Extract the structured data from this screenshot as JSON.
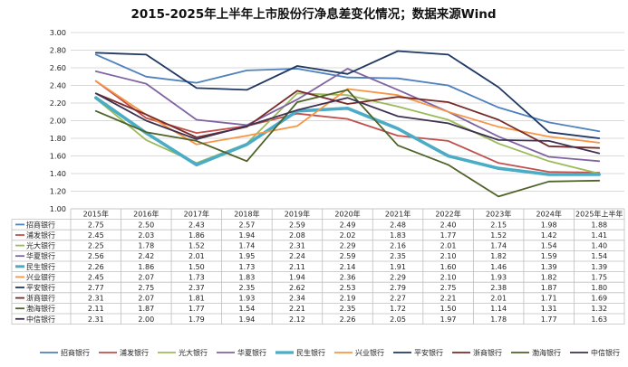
{
  "chart_data": {
    "type": "line",
    "title": "2015-2025年上半年上市股份行净息差变化情况；数据来源Wind",
    "categories": [
      "2015年",
      "2016年",
      "2017年",
      "2018年",
      "2019年",
      "2020年",
      "2021年",
      "2022年",
      "2023年",
      "2024年",
      "2025年上半年"
    ],
    "ylim": [
      1.0,
      3.0
    ],
    "yticks": [
      "1.00",
      "1.20",
      "1.40",
      "1.60",
      "1.80",
      "2.00",
      "2.20",
      "2.40",
      "2.60",
      "2.80",
      "3.00"
    ],
    "grid": true,
    "legend": "bottom",
    "data_table": true,
    "series": [
      {
        "name": "招商银行",
        "color": "#4e81bd",
        "width": 1.8,
        "values": [
          2.75,
          2.5,
          2.43,
          2.57,
          2.59,
          2.49,
          2.48,
          2.4,
          2.15,
          1.98,
          1.88
        ]
      },
      {
        "name": "浦发银行",
        "color": "#c0504d",
        "width": 1.8,
        "values": [
          2.45,
          2.03,
          1.86,
          1.94,
          2.08,
          2.02,
          1.83,
          1.77,
          1.52,
          1.42,
          1.41
        ]
      },
      {
        "name": "光大银行",
        "color": "#9bbb59",
        "width": 1.8,
        "values": [
          2.25,
          1.78,
          1.52,
          1.74,
          2.31,
          2.29,
          2.16,
          2.01,
          1.74,
          1.54,
          1.4
        ]
      },
      {
        "name": "华夏银行",
        "color": "#8064a2",
        "width": 1.8,
        "values": [
          2.56,
          2.42,
          2.01,
          1.95,
          2.24,
          2.59,
          2.35,
          2.1,
          1.82,
          1.59,
          1.54
        ]
      },
      {
        "name": "民生银行",
        "color": "#4bacc6",
        "width": 3.6,
        "values": [
          2.26,
          1.86,
          1.5,
          1.73,
          2.11,
          2.14,
          1.91,
          1.6,
          1.46,
          1.39,
          1.39
        ]
      },
      {
        "name": "兴业银行",
        "color": "#f79646",
        "width": 1.8,
        "values": [
          2.45,
          2.07,
          1.73,
          1.83,
          1.94,
          2.36,
          2.29,
          2.1,
          1.93,
          1.82,
          1.75
        ]
      },
      {
        "name": "平安银行",
        "color": "#1f3864",
        "width": 1.8,
        "values": [
          2.77,
          2.75,
          2.37,
          2.35,
          2.62,
          2.53,
          2.79,
          2.75,
          2.38,
          1.87,
          1.8
        ]
      },
      {
        "name": "浙商银行",
        "color": "#772c2a",
        "width": 1.8,
        "values": [
          2.31,
          2.07,
          1.81,
          1.93,
          2.34,
          2.19,
          2.27,
          2.21,
          2.01,
          1.71,
          1.69
        ]
      },
      {
        "name": "渤海银行",
        "color": "#4f6228",
        "width": 1.8,
        "values": [
          2.11,
          1.87,
          1.77,
          1.54,
          2.21,
          2.35,
          1.72,
          1.5,
          1.14,
          1.31,
          1.32
        ]
      },
      {
        "name": "中信银行",
        "color": "#3f3151",
        "width": 1.8,
        "values": [
          2.31,
          2.0,
          1.79,
          1.94,
          2.12,
          2.26,
          2.05,
          1.97,
          1.78,
          1.77,
          1.63
        ]
      }
    ]
  }
}
